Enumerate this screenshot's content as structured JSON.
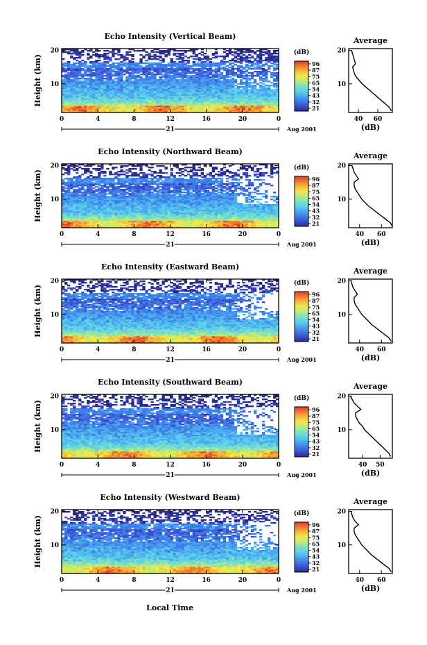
{
  "figure": {
    "xlabel_bottom": "Local Time",
    "colorbar_unit": "(dB)",
    "colorbar_colors": [
      "#2b2b8c",
      "#3a4fcf",
      "#3f7de8",
      "#4aa9f0",
      "#5dd0e8",
      "#7fe0c0",
      "#b9ea7a",
      "#f0e74a",
      "#f7b93a",
      "#f27a2a",
      "#e0392a"
    ]
  },
  "chart_data": [
    {
      "type": "heatmap",
      "title": "Echo Intensity (Vertical Beam)",
      "ylabel": "Height (km)",
      "x_ticks": [
        "0",
        "4",
        "8",
        "12",
        "16",
        "20",
        "0"
      ],
      "y_ticks": [
        "20",
        "10"
      ],
      "date_label": "21",
      "month_label": "Aug 2001",
      "xlim": [
        0,
        24
      ],
      "ylim": [
        1.5,
        20.5
      ],
      "colorbar_ticks": [
        "96",
        "87",
        "75",
        "65",
        "54",
        "43",
        "32",
        "21"
      ],
      "profile": {
        "title": "Average",
        "xlabel": "(dB)",
        "x_ticks": [
          "40",
          "60"
        ],
        "y_ticks": [
          "20",
          "10"
        ],
        "xlim": [
          30,
          75
        ],
        "heights": [
          2,
          3,
          4,
          5,
          6,
          7,
          8,
          9,
          10,
          11,
          12,
          13,
          14,
          15,
          16,
          17,
          18,
          19,
          20
        ],
        "values": [
          74,
          72,
          68,
          64,
          60,
          56,
          52,
          48,
          44,
          41,
          38,
          36,
          35,
          34,
          37,
          36,
          35,
          34,
          33
        ]
      }
    },
    {
      "type": "heatmap",
      "title": "Echo Intensity (Northward Beam)",
      "ylabel": "Height (km)",
      "x_ticks": [
        "0",
        "4",
        "8",
        "12",
        "16",
        "20",
        "0"
      ],
      "y_ticks": [
        "20",
        "10"
      ],
      "date_label": "21",
      "month_label": "Aug 2001",
      "xlim": [
        0,
        24
      ],
      "ylim": [
        1.5,
        20.5
      ],
      "colorbar_ticks": [
        "96",
        "87",
        "75",
        "65",
        "54",
        "43",
        "32",
        "21"
      ],
      "profile": {
        "title": "Average",
        "xlabel": "(dB)",
        "x_ticks": [
          "40",
          "60"
        ],
        "y_ticks": [
          "20",
          "10"
        ],
        "xlim": [
          30,
          70
        ],
        "heights": [
          2,
          3,
          4,
          5,
          6,
          7,
          8,
          9,
          10,
          11,
          12,
          13,
          14,
          15,
          16,
          17,
          18,
          19,
          20
        ],
        "values": [
          70,
          68,
          64,
          60,
          56,
          52,
          48,
          45,
          42,
          40,
          38,
          36,
          35,
          35,
          39,
          37,
          35,
          34,
          33
        ]
      }
    },
    {
      "type": "heatmap",
      "title": "Echo Intensity (Eastward Beam)",
      "ylabel": "Height (km)",
      "x_ticks": [
        "0",
        "4",
        "8",
        "12",
        "16",
        "20",
        "0"
      ],
      "y_ticks": [
        "20",
        "10"
      ],
      "date_label": "21",
      "month_label": "Aug 2001",
      "xlim": [
        0,
        24
      ],
      "ylim": [
        1.5,
        20.5
      ],
      "colorbar_ticks": [
        "96",
        "87",
        "75",
        "65",
        "54",
        "43",
        "32",
        "21"
      ],
      "profile": {
        "title": "Average",
        "xlabel": "(dB)",
        "x_ticks": [
          "40",
          "60"
        ],
        "y_ticks": [
          "20",
          "10"
        ],
        "xlim": [
          30,
          70
        ],
        "heights": [
          2,
          3,
          4,
          5,
          6,
          7,
          8,
          9,
          10,
          11,
          12,
          13,
          14,
          15,
          16,
          17,
          18,
          19,
          20
        ],
        "values": [
          69,
          67,
          63,
          59,
          55,
          51,
          48,
          45,
          42,
          40,
          38,
          36,
          35,
          35,
          38,
          36,
          34,
          33,
          32
        ]
      }
    },
    {
      "type": "heatmap",
      "title": "Echo Intensity (Southward Beam)",
      "ylabel": "Height (km)",
      "x_ticks": [
        "0",
        "4",
        "8",
        "12",
        "16",
        "20",
        "0"
      ],
      "y_ticks": [
        "20",
        "10"
      ],
      "date_label": "21",
      "month_label": "Aug 2001",
      "xlim": [
        0,
        24
      ],
      "ylim": [
        1.5,
        20.5
      ],
      "colorbar_ticks": [
        "96",
        "87",
        "75",
        "65",
        "54",
        "43",
        "32",
        "21"
      ],
      "profile": {
        "title": "Average",
        "xlabel": "(dB)",
        "x_ticks": [
          "40",
          "50"
        ],
        "y_ticks": [
          "20",
          "10"
        ],
        "xlim": [
          32,
          57
        ],
        "heights": [
          2,
          3,
          4,
          5,
          6,
          7,
          8,
          9,
          10,
          11,
          12,
          13,
          14,
          15,
          16,
          17,
          18,
          19,
          20
        ],
        "values": [
          56,
          55,
          53,
          51,
          49,
          47,
          45,
          43,
          41,
          40,
          38,
          37,
          36,
          36,
          39,
          37,
          35,
          34,
          33
        ]
      }
    },
    {
      "type": "heatmap",
      "title": "Echo Intensity (Westward Beam)",
      "ylabel": "Height (km)",
      "x_ticks": [
        "0",
        "4",
        "8",
        "12",
        "16",
        "20",
        "0"
      ],
      "y_ticks": [
        "20",
        "10"
      ],
      "date_label": "21",
      "month_label": "Aug 2001",
      "xlim": [
        0,
        24
      ],
      "ylim": [
        1.5,
        20.5
      ],
      "colorbar_ticks": [
        "96",
        "87",
        "75",
        "65",
        "54",
        "43",
        "32",
        "21"
      ],
      "profile": {
        "title": "Average",
        "xlabel": "(dB)",
        "x_ticks": [
          "40",
          "60"
        ],
        "y_ticks": [
          "20",
          "10"
        ],
        "xlim": [
          30,
          70
        ],
        "heights": [
          2,
          3,
          4,
          5,
          6,
          7,
          8,
          9,
          10,
          11,
          12,
          13,
          14,
          15,
          16,
          17,
          18,
          19,
          20
        ],
        "values": [
          69,
          67,
          63,
          59,
          55,
          51,
          48,
          45,
          42,
          40,
          38,
          36,
          35,
          35,
          39,
          36,
          34,
          33,
          32
        ]
      }
    }
  ]
}
